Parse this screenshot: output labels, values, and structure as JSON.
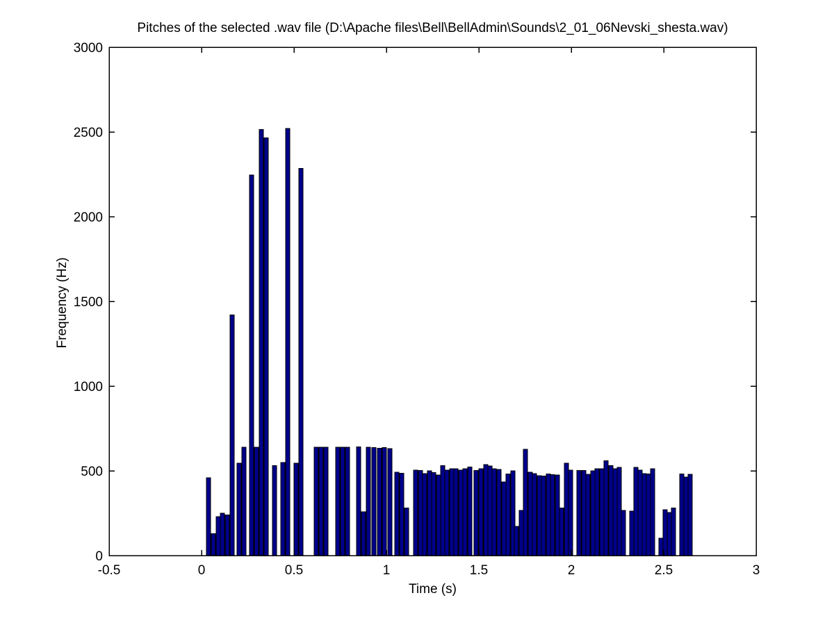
{
  "chart_data": {
    "type": "bar",
    "title": "Pitches of the selected .wav file (D:\\Apache files\\Bell\\BellAdmin\\Sounds\\2_01_06Nevski_shesta.wav)",
    "xlabel": "Time (s)",
    "ylabel": "Frequency (Hz)",
    "xlim": [
      -0.5,
      3
    ],
    "ylim": [
      0,
      3000
    ],
    "xticks": [
      -0.5,
      0,
      0.5,
      1,
      1.5,
      2,
      2.5,
      3
    ],
    "xtick_labels": [
      "-0.5",
      "0",
      "0.5",
      "1",
      "1.5",
      "2",
      "2.5",
      "3"
    ],
    "yticks": [
      0,
      500,
      1000,
      1500,
      2000,
      2500,
      3000
    ],
    "ytick_labels": [
      "0",
      "500",
      "1000",
      "1500",
      "2000",
      "2500",
      "3000"
    ],
    "grid": false,
    "legend": null,
    "box": true,
    "tick_direction": "in",
    "bar_color": "#00008b",
    "bar_edge_color": "#000000",
    "background_color": "#ffffff",
    "bar_width_s": 0.0225,
    "points": [
      [
        0.026,
        460
      ],
      [
        0.053,
        130
      ],
      [
        0.079,
        230
      ],
      [
        0.102,
        250
      ],
      [
        0.128,
        240
      ],
      [
        0.154,
        1420
      ],
      [
        0.192,
        545
      ],
      [
        0.218,
        640
      ],
      [
        0.259,
        2245
      ],
      [
        0.286,
        640
      ],
      [
        0.312,
        2515
      ],
      [
        0.338,
        2465
      ],
      [
        0.383,
        530
      ],
      [
        0.429,
        550
      ],
      [
        0.455,
        2520
      ],
      [
        0.5,
        545
      ],
      [
        0.526,
        2285
      ],
      [
        0.609,
        639
      ],
      [
        0.635,
        639
      ],
      [
        0.662,
        639
      ],
      [
        0.726,
        639
      ],
      [
        0.752,
        639
      ],
      [
        0.778,
        639
      ],
      [
        0.838,
        641
      ],
      [
        0.865,
        259
      ],
      [
        0.891,
        639
      ],
      [
        0.921,
        637
      ],
      [
        0.951,
        633
      ],
      [
        0.977,
        637
      ],
      [
        1.008,
        632
      ],
      [
        1.045,
        492
      ],
      [
        1.071,
        486
      ],
      [
        1.098,
        280
      ],
      [
        1.147,
        504
      ],
      [
        1.173,
        503
      ],
      [
        1.195,
        484
      ],
      [
        1.222,
        500
      ],
      [
        1.244,
        490
      ],
      [
        1.271,
        476
      ],
      [
        1.293,
        531
      ],
      [
        1.316,
        505
      ],
      [
        1.342,
        512
      ],
      [
        1.365,
        513
      ],
      [
        1.391,
        505
      ],
      [
        1.414,
        512
      ],
      [
        1.44,
        523
      ],
      [
        1.474,
        503
      ],
      [
        1.5,
        513
      ],
      [
        1.526,
        537
      ],
      [
        1.549,
        528
      ],
      [
        1.571,
        512
      ],
      [
        1.598,
        508
      ],
      [
        1.624,
        434
      ],
      [
        1.647,
        482
      ],
      [
        1.673,
        500
      ],
      [
        1.692,
        172
      ],
      [
        1.718,
        266
      ],
      [
        1.741,
        627
      ],
      [
        1.767,
        492
      ],
      [
        1.789,
        484
      ],
      [
        1.816,
        471
      ],
      [
        1.838,
        470
      ],
      [
        1.865,
        481
      ],
      [
        1.887,
        478
      ],
      [
        1.913,
        475
      ],
      [
        1.936,
        280
      ],
      [
        1.962,
        546
      ],
      [
        1.985,
        504
      ],
      [
        2.03,
        503
      ],
      [
        2.056,
        503
      ],
      [
        2.079,
        479
      ],
      [
        2.105,
        500
      ],
      [
        2.128,
        512
      ],
      [
        2.154,
        513
      ],
      [
        2.177,
        560
      ],
      [
        2.203,
        531
      ],
      [
        2.226,
        512
      ],
      [
        2.248,
        521
      ],
      [
        2.271,
        266
      ],
      [
        2.316,
        262
      ],
      [
        2.338,
        520
      ],
      [
        2.361,
        504
      ],
      [
        2.383,
        484
      ],
      [
        2.406,
        481
      ],
      [
        2.429,
        512
      ],
      [
        2.474,
        102
      ],
      [
        2.496,
        270
      ],
      [
        2.519,
        255
      ],
      [
        2.541,
        280
      ],
      [
        2.586,
        481
      ],
      [
        2.609,
        464
      ],
      [
        2.632,
        479
      ]
    ]
  }
}
